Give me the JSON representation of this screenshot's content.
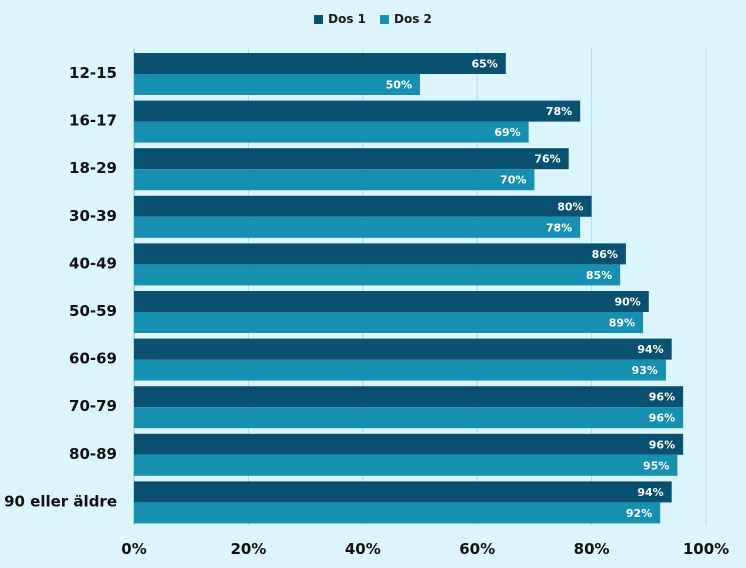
{
  "chart_data": {
    "type": "bar",
    "orientation": "horizontal",
    "categories": [
      "12-15",
      "16-17",
      "18-29",
      "30-39",
      "40-49",
      "50-59",
      "60-69",
      "70-79",
      "80-89",
      "90 eller äldre"
    ],
    "series": [
      {
        "name": "Dos 1",
        "color": "#0a5070",
        "values": [
          65,
          78,
          76,
          80,
          86,
          90,
          94,
          96,
          96,
          94
        ]
      },
      {
        "name": "Dos 2",
        "color": "#168fb0",
        "values": [
          50,
          69,
          70,
          78,
          85,
          89,
          93,
          96,
          95,
          92
        ]
      }
    ],
    "xlim": [
      0,
      100
    ],
    "xticks": [
      0,
      20,
      40,
      60,
      80,
      100
    ],
    "tick_suffix": "%",
    "grid": true,
    "legend": "top-center",
    "title": "",
    "xlabel": "",
    "ylabel": ""
  }
}
